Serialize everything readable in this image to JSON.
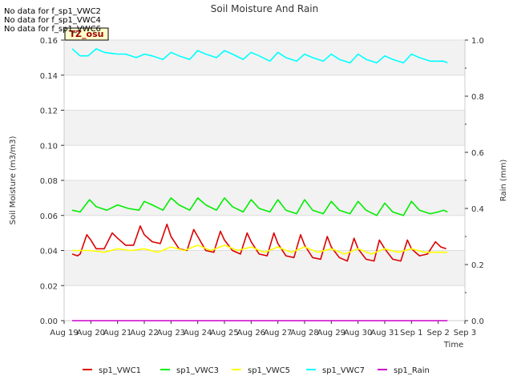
{
  "notes": [
    "No data for f_sp1_VWC2",
    "No data for f_sp1_VWC4",
    "No data for f_sp1_VWC6"
  ],
  "chart_data": {
    "type": "line",
    "title": "Soil Moisture And Rain",
    "xlabel": "Time",
    "ylabel": "Soil Moisture (m3/m3)",
    "y2label": "Rain (mm)",
    "site_label": "TZ_osu",
    "xlim": [
      0,
      15
    ],
    "x_ticks": [
      "Aug 19",
      "Aug 20",
      "Aug 21",
      "Aug 22",
      "Aug 23",
      "Aug 24",
      "Aug 25",
      "Aug 26",
      "Aug 27",
      "Aug 28",
      "Aug 29",
      "Aug 30",
      "Aug 31",
      "Sep 1",
      "Sep 2",
      "Sep 3"
    ],
    "ylim": [
      0,
      0.16
    ],
    "y_ticks": [
      "0.00",
      "0.02",
      "0.04",
      "0.06",
      "0.08",
      "0.10",
      "0.12",
      "0.14",
      "0.16"
    ],
    "y2lim": [
      0,
      1.0
    ],
    "y2_ticks": [
      "0.0",
      "0.2",
      "0.4",
      "0.6",
      "0.8",
      "1.0"
    ],
    "grid": "horizontal bands",
    "legend_position": "bottom",
    "series": [
      {
        "name": "sp1_VWC1",
        "color": "#dd0000",
        "axis": "left",
        "points": [
          [
            0.3,
            0.038
          ],
          [
            0.5,
            0.037
          ],
          [
            0.6,
            0.038
          ],
          [
            0.85,
            0.049
          ],
          [
            1.0,
            0.046
          ],
          [
            1.2,
            0.041
          ],
          [
            1.5,
            0.041
          ],
          [
            1.8,
            0.05
          ],
          [
            2.0,
            0.047
          ],
          [
            2.3,
            0.043
          ],
          [
            2.6,
            0.043
          ],
          [
            2.85,
            0.054
          ],
          [
            3.0,
            0.049
          ],
          [
            3.3,
            0.045
          ],
          [
            3.6,
            0.044
          ],
          [
            3.85,
            0.055
          ],
          [
            4.0,
            0.048
          ],
          [
            4.3,
            0.041
          ],
          [
            4.6,
            0.04
          ],
          [
            4.85,
            0.052
          ],
          [
            5.0,
            0.048
          ],
          [
            5.3,
            0.04
          ],
          [
            5.6,
            0.039
          ],
          [
            5.85,
            0.051
          ],
          [
            6.0,
            0.046
          ],
          [
            6.3,
            0.04
          ],
          [
            6.6,
            0.038
          ],
          [
            6.85,
            0.05
          ],
          [
            7.0,
            0.045
          ],
          [
            7.3,
            0.038
          ],
          [
            7.6,
            0.037
          ],
          [
            7.85,
            0.05
          ],
          [
            8.0,
            0.044
          ],
          [
            8.3,
            0.037
          ],
          [
            8.6,
            0.036
          ],
          [
            8.85,
            0.049
          ],
          [
            9.0,
            0.043
          ],
          [
            9.3,
            0.036
          ],
          [
            9.6,
            0.035
          ],
          [
            9.85,
            0.048
          ],
          [
            10.0,
            0.042
          ],
          [
            10.3,
            0.036
          ],
          [
            10.6,
            0.034
          ],
          [
            10.85,
            0.047
          ],
          [
            11.0,
            0.041
          ],
          [
            11.3,
            0.035
          ],
          [
            11.6,
            0.034
          ],
          [
            11.8,
            0.046
          ],
          [
            12.0,
            0.041
          ],
          [
            12.3,
            0.035
          ],
          [
            12.6,
            0.034
          ],
          [
            12.85,
            0.046
          ],
          [
            13.0,
            0.041
          ],
          [
            13.3,
            0.037
          ],
          [
            13.6,
            0.038
          ],
          [
            13.9,
            0.045
          ],
          [
            14.1,
            0.042
          ],
          [
            14.3,
            0.041
          ]
        ]
      },
      {
        "name": "sp1_VWC3",
        "color": "#00ee00",
        "axis": "left",
        "points": [
          [
            0.3,
            0.063
          ],
          [
            0.6,
            0.062
          ],
          [
            0.95,
            0.069
          ],
          [
            1.2,
            0.065
          ],
          [
            1.6,
            0.063
          ],
          [
            2.0,
            0.066
          ],
          [
            2.4,
            0.064
          ],
          [
            2.8,
            0.063
          ],
          [
            3.0,
            0.068
          ],
          [
            3.3,
            0.066
          ],
          [
            3.7,
            0.063
          ],
          [
            4.0,
            0.07
          ],
          [
            4.3,
            0.066
          ],
          [
            4.7,
            0.063
          ],
          [
            5.0,
            0.07
          ],
          [
            5.3,
            0.066
          ],
          [
            5.7,
            0.063
          ],
          [
            6.0,
            0.07
          ],
          [
            6.3,
            0.065
          ],
          [
            6.7,
            0.062
          ],
          [
            7.0,
            0.069
          ],
          [
            7.3,
            0.064
          ],
          [
            7.7,
            0.062
          ],
          [
            8.0,
            0.069
          ],
          [
            8.3,
            0.063
          ],
          [
            8.7,
            0.061
          ],
          [
            9.0,
            0.069
          ],
          [
            9.3,
            0.063
          ],
          [
            9.7,
            0.061
          ],
          [
            10.0,
            0.068
          ],
          [
            10.3,
            0.063
          ],
          [
            10.7,
            0.061
          ],
          [
            11.0,
            0.068
          ],
          [
            11.3,
            0.063
          ],
          [
            11.7,
            0.06
          ],
          [
            12.0,
            0.067
          ],
          [
            12.3,
            0.062
          ],
          [
            12.7,
            0.06
          ],
          [
            13.0,
            0.068
          ],
          [
            13.3,
            0.063
          ],
          [
            13.7,
            0.061
          ],
          [
            14.0,
            0.062
          ],
          [
            14.2,
            0.063
          ],
          [
            14.35,
            0.062
          ]
        ]
      },
      {
        "name": "sp1_VWC5",
        "color": "#ffff00",
        "axis": "left",
        "points": [
          [
            0.3,
            0.04
          ],
          [
            1.0,
            0.04
          ],
          [
            1.5,
            0.039
          ],
          [
            2.0,
            0.041
          ],
          [
            2.5,
            0.04
          ],
          [
            3.0,
            0.041
          ],
          [
            3.5,
            0.039
          ],
          [
            4.0,
            0.042
          ],
          [
            4.5,
            0.04
          ],
          [
            5.0,
            0.043
          ],
          [
            5.5,
            0.04
          ],
          [
            6.0,
            0.043
          ],
          [
            6.5,
            0.04
          ],
          [
            7.0,
            0.042
          ],
          [
            7.5,
            0.039
          ],
          [
            8.0,
            0.042
          ],
          [
            8.5,
            0.039
          ],
          [
            9.0,
            0.042
          ],
          [
            9.5,
            0.039
          ],
          [
            10.0,
            0.041
          ],
          [
            10.5,
            0.038
          ],
          [
            11.0,
            0.041
          ],
          [
            11.5,
            0.038
          ],
          [
            12.0,
            0.041
          ],
          [
            12.5,
            0.039
          ],
          [
            13.0,
            0.041
          ],
          [
            13.5,
            0.039
          ],
          [
            14.0,
            0.039
          ],
          [
            14.35,
            0.039
          ]
        ]
      },
      {
        "name": "sp1_VWC7",
        "color": "#00ffff",
        "axis": "left",
        "points": [
          [
            0.3,
            0.155
          ],
          [
            0.6,
            0.151
          ],
          [
            0.9,
            0.151
          ],
          [
            1.2,
            0.155
          ],
          [
            1.5,
            0.153
          ],
          [
            2.0,
            0.152
          ],
          [
            2.3,
            0.152
          ],
          [
            2.7,
            0.15
          ],
          [
            3.0,
            0.152
          ],
          [
            3.3,
            0.151
          ],
          [
            3.7,
            0.149
          ],
          [
            4.0,
            0.153
          ],
          [
            4.3,
            0.151
          ],
          [
            4.7,
            0.149
          ],
          [
            5.0,
            0.154
          ],
          [
            5.3,
            0.152
          ],
          [
            5.7,
            0.15
          ],
          [
            6.0,
            0.154
          ],
          [
            6.3,
            0.152
          ],
          [
            6.7,
            0.149
          ],
          [
            7.0,
            0.153
          ],
          [
            7.3,
            0.151
          ],
          [
            7.7,
            0.148
          ],
          [
            8.0,
            0.153
          ],
          [
            8.3,
            0.15
          ],
          [
            8.7,
            0.148
          ],
          [
            9.0,
            0.152
          ],
          [
            9.3,
            0.15
          ],
          [
            9.7,
            0.148
          ],
          [
            10.0,
            0.152
          ],
          [
            10.3,
            0.149
          ],
          [
            10.7,
            0.147
          ],
          [
            11.0,
            0.152
          ],
          [
            11.3,
            0.149
          ],
          [
            11.7,
            0.147
          ],
          [
            12.0,
            0.151
          ],
          [
            12.3,
            0.149
          ],
          [
            12.7,
            0.147
          ],
          [
            13.0,
            0.152
          ],
          [
            13.3,
            0.15
          ],
          [
            13.7,
            0.148
          ],
          [
            14.0,
            0.148
          ],
          [
            14.2,
            0.148
          ],
          [
            14.35,
            0.147
          ]
        ]
      },
      {
        "name": "sp1_Rain",
        "color": "#cc00cc",
        "axis": "right",
        "points": [
          [
            0.3,
            0.0
          ],
          [
            14.35,
            0.0
          ]
        ]
      }
    ]
  }
}
